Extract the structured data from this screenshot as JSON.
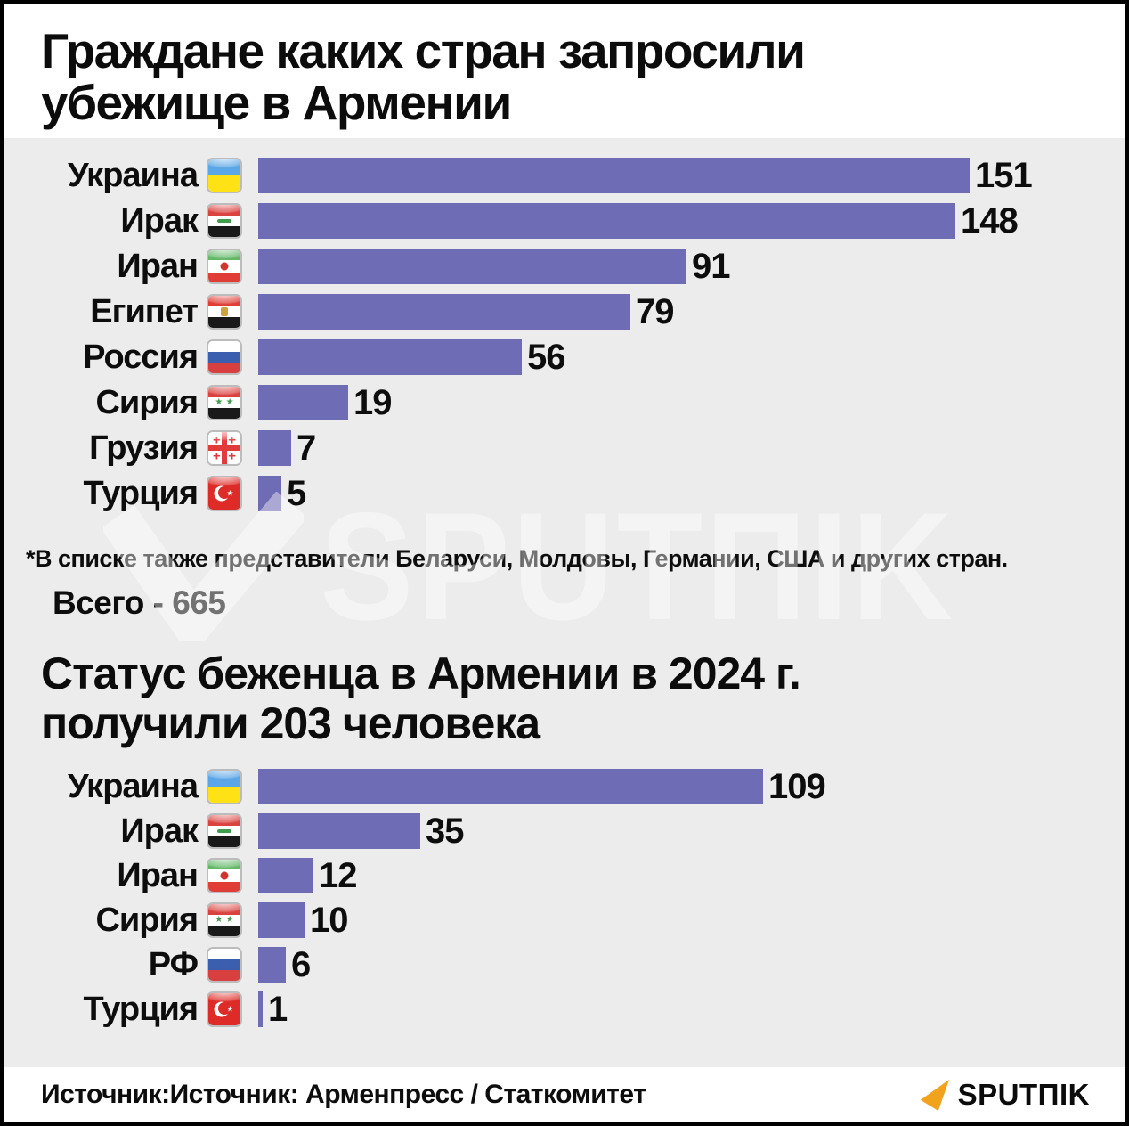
{
  "page": {
    "background": "#ececec",
    "border_color": "#000000"
  },
  "header": {
    "title": "Граждане каких стран запросили убежище в Армении",
    "title_lines": [
      "Граждане каких стран запросили",
      "убежище в Армении"
    ]
  },
  "chart_data": [
    {
      "type": "bar",
      "orientation": "horizontal",
      "title": "Граждане каких стран запросили убежище в Армении",
      "categories": [
        "Украина",
        "Ирак",
        "Иран",
        "Египет",
        "Россия",
        "Сирия",
        "Грузия",
        "Турция"
      ],
      "values": [
        151,
        148,
        91,
        79,
        56,
        19,
        7,
        5
      ],
      "flags": [
        "ukraine",
        "iraq",
        "iran",
        "egypt",
        "russia",
        "syria",
        "georgia",
        "turkey"
      ],
      "bar_color": "#6e6cb4",
      "value_labels_shown": true,
      "axis_shown": false,
      "value_range": [
        0,
        151
      ],
      "footnote": "*В списке также представители Беларуси, Молдовы, Германии, США и других стран.",
      "total_label": "Всего - 665"
    },
    {
      "type": "bar",
      "orientation": "horizontal",
      "title": "Статус беженца в Армении в 2024 г. получили 203 человека",
      "title_lines": [
        "Статус беженца в Армении в 2024 г.",
        "получили 203 человека"
      ],
      "categories": [
        "Украина",
        "Ирак",
        "Иран",
        "Сирия",
        "РФ",
        "Турция"
      ],
      "values": [
        109,
        35,
        12,
        10,
        6,
        1
      ],
      "flags": [
        "ukraine",
        "iraq",
        "iran",
        "syria",
        "russia",
        "turkey"
      ],
      "bar_color": "#6e6cb4",
      "value_labels_shown": true,
      "axis_shown": false,
      "value_range": [
        0,
        109
      ]
    }
  ],
  "watermark": {
    "brand": "SPUTNIK",
    "wordmark": "SPUTΠIK"
  },
  "footer": {
    "source": "Источник:Источник: Арменпресс / Статкомитет",
    "brand": "SPUTNIK",
    "wordmark": "SPUTΠIK",
    "logo_icon": "sputnik-arrow-icon",
    "logo_color": "#f2a31d"
  }
}
